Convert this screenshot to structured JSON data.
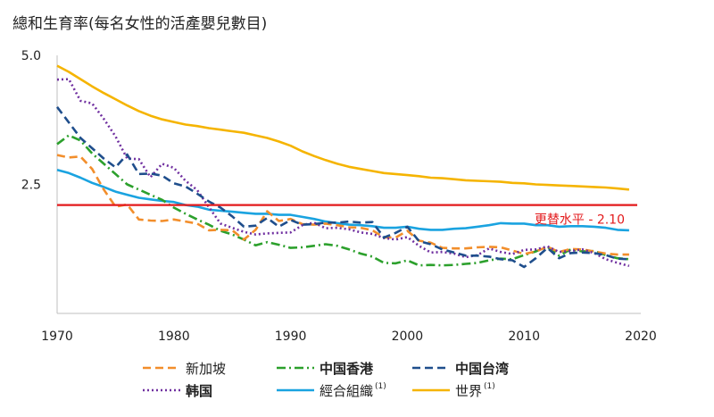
{
  "chart_data": {
    "type": "line",
    "title": "總和生育率(每名女性的活產嬰兒數目)",
    "xlabel": "",
    "ylabel": "",
    "xlim": [
      1970,
      2020
    ],
    "ylim": [
      0,
      5
    ],
    "x_ticks": [
      "1970",
      "1980",
      "1990",
      "2000",
      "2010",
      "2020"
    ],
    "y_ticks": [
      "5.0",
      "2.5"
    ],
    "reference_line": {
      "label": "更替水平 - 2.10",
      "value": 2.1,
      "color": "#e31a1c"
    },
    "series": [
      {
        "name": "新加坡",
        "color": "#f28e2b",
        "style": "dash",
        "bold": false,
        "note": "",
        "x": [
          1970,
          1971,
          1972,
          1973,
          1974,
          1975,
          1976,
          1977,
          1978,
          1979,
          1980,
          1981,
          1982,
          1983,
          1984,
          1985,
          1986,
          1987,
          1988,
          1989,
          1990,
          1991,
          1992,
          1993,
          1994,
          1995,
          1996,
          1997,
          1998,
          1999,
          2000,
          2001,
          2002,
          2003,
          2004,
          2005,
          2006,
          2007,
          2008,
          2009,
          2010,
          2011,
          2012,
          2013,
          2014,
          2015,
          2016,
          2017,
          2018,
          2019
        ],
        "y": [
          3.07,
          3.02,
          3.04,
          2.8,
          2.4,
          2.07,
          2.11,
          1.82,
          1.8,
          1.79,
          1.82,
          1.78,
          1.74,
          1.61,
          1.62,
          1.61,
          1.43,
          1.62,
          1.98,
          1.79,
          1.83,
          1.73,
          1.72,
          1.74,
          1.71,
          1.67,
          1.66,
          1.61,
          1.47,
          1.47,
          1.6,
          1.41,
          1.37,
          1.27,
          1.26,
          1.26,
          1.28,
          1.29,
          1.28,
          1.22,
          1.15,
          1.2,
          1.29,
          1.19,
          1.25,
          1.24,
          1.2,
          1.16,
          1.14,
          1.14
        ]
      },
      {
        "name": "中国香港",
        "color": "#2ca02c",
        "style": "dashdot",
        "bold": true,
        "note": "",
        "x": [
          1970,
          1971,
          1972,
          1973,
          1974,
          1975,
          1976,
          1977,
          1978,
          1979,
          1980,
          1981,
          1982,
          1983,
          1984,
          1985,
          1986,
          1987,
          1988,
          1989,
          1990,
          1991,
          1992,
          1993,
          1994,
          1995,
          1996,
          1997,
          1998,
          1999,
          2000,
          2001,
          2002,
          2003,
          2004,
          2005,
          2006,
          2007,
          2008,
          2009,
          2010,
          2011,
          2012,
          2013,
          2014,
          2015,
          2016,
          2017,
          2018,
          2019
        ],
        "y": [
          3.28,
          3.45,
          3.35,
          3.1,
          2.9,
          2.7,
          2.5,
          2.4,
          2.3,
          2.2,
          2.05,
          1.93,
          1.82,
          1.72,
          1.6,
          1.53,
          1.43,
          1.32,
          1.38,
          1.33,
          1.27,
          1.28,
          1.31,
          1.34,
          1.31,
          1.24,
          1.16,
          1.1,
          0.98,
          0.97,
          1.03,
          0.93,
          0.94,
          0.93,
          0.94,
          0.96,
          0.98,
          1.03,
          1.06,
          1.05,
          1.13,
          1.2,
          1.29,
          1.12,
          1.24,
          1.2,
          1.21,
          1.13,
          1.07,
          1.05
        ]
      },
      {
        "name": "中国台湾",
        "color": "#1f4e8c",
        "style": "dash",
        "bold": true,
        "note": "",
        "x": [
          1970,
          1971,
          1972,
          1973,
          1974,
          1975,
          1976,
          1977,
          1978,
          1979,
          1980,
          1981,
          1982,
          1983,
          1984,
          1985,
          1986,
          1987,
          1988,
          1989,
          1990,
          1991,
          1992,
          1993,
          1994,
          1995,
          1996,
          1997,
          1998,
          1999,
          2000,
          2001,
          2002,
          2003,
          2004,
          2005,
          2006,
          2007,
          2008,
          2009,
          2010,
          2011,
          2012,
          2013,
          2014,
          2015,
          2016,
          2017,
          2018,
          2019
        ],
        "y": [
          4.0,
          3.7,
          3.4,
          3.2,
          3.0,
          2.83,
          3.08,
          2.7,
          2.71,
          2.67,
          2.52,
          2.46,
          2.32,
          2.17,
          2.05,
          1.88,
          1.68,
          1.7,
          1.85,
          1.68,
          1.81,
          1.72,
          1.73,
          1.76,
          1.76,
          1.78,
          1.76,
          1.77,
          1.47,
          1.56,
          1.68,
          1.4,
          1.34,
          1.24,
          1.18,
          1.12,
          1.12,
          1.1,
          1.05,
          1.03,
          0.9,
          1.07,
          1.27,
          1.07,
          1.17,
          1.18,
          1.17,
          1.13,
          1.06,
          1.05
        ]
      },
      {
        "name": "韩国",
        "color": "#7030a0",
        "style": "dot",
        "bold": true,
        "note": "",
        "x": [
          1970,
          1971,
          1972,
          1973,
          1974,
          1975,
          1976,
          1977,
          1978,
          1979,
          1980,
          1981,
          1982,
          1983,
          1984,
          1985,
          1986,
          1987,
          1988,
          1989,
          1990,
          1991,
          1992,
          1993,
          1994,
          1995,
          1996,
          1997,
          1998,
          1999,
          2000,
          2001,
          2002,
          2003,
          2004,
          2005,
          2006,
          2007,
          2008,
          2009,
          2010,
          2011,
          2012,
          2013,
          2014,
          2015,
          2016,
          2017,
          2018,
          2019
        ],
        "y": [
          4.53,
          4.54,
          4.12,
          4.07,
          3.77,
          3.43,
          3.0,
          2.99,
          2.64,
          2.9,
          2.82,
          2.57,
          2.39,
          2.06,
          1.74,
          1.66,
          1.58,
          1.53,
          1.55,
          1.56,
          1.57,
          1.71,
          1.76,
          1.65,
          1.66,
          1.63,
          1.57,
          1.54,
          1.46,
          1.43,
          1.48,
          1.31,
          1.18,
          1.19,
          1.16,
          1.09,
          1.13,
          1.26,
          1.19,
          1.15,
          1.23,
          1.24,
          1.3,
          1.19,
          1.21,
          1.24,
          1.17,
          1.05,
          0.98,
          0.92
        ]
      },
      {
        "name": "經合組織",
        "color": "#1aa3e0",
        "style": "solid",
        "bold": false,
        "note": "(1)",
        "x": [
          1970,
          1971,
          1972,
          1973,
          1974,
          1975,
          1976,
          1977,
          1978,
          1979,
          1980,
          1981,
          1982,
          1983,
          1984,
          1985,
          1986,
          1987,
          1988,
          1989,
          1990,
          1991,
          1992,
          1993,
          1994,
          1995,
          1996,
          1997,
          1998,
          1999,
          2000,
          2001,
          2002,
          2003,
          2004,
          2005,
          2006,
          2007,
          2008,
          2009,
          2010,
          2011,
          2012,
          2013,
          2014,
          2015,
          2016,
          2017,
          2018,
          2019
        ],
        "y": [
          2.78,
          2.72,
          2.63,
          2.53,
          2.45,
          2.36,
          2.3,
          2.24,
          2.21,
          2.18,
          2.16,
          2.1,
          2.07,
          2.01,
          1.99,
          1.97,
          1.95,
          1.93,
          1.93,
          1.91,
          1.91,
          1.87,
          1.83,
          1.78,
          1.75,
          1.72,
          1.71,
          1.69,
          1.66,
          1.66,
          1.68,
          1.64,
          1.62,
          1.62,
          1.64,
          1.65,
          1.68,
          1.71,
          1.75,
          1.74,
          1.74,
          1.71,
          1.71,
          1.68,
          1.69,
          1.69,
          1.68,
          1.66,
          1.62,
          1.61
        ]
      },
      {
        "name": "世界",
        "color": "#f5b400",
        "style": "solid",
        "bold": false,
        "note": "(1)",
        "x": [
          1970,
          1971,
          1972,
          1973,
          1974,
          1975,
          1976,
          1977,
          1978,
          1979,
          1980,
          1981,
          1982,
          1983,
          1984,
          1985,
          1986,
          1987,
          1988,
          1989,
          1990,
          1991,
          1992,
          1993,
          1994,
          1995,
          1996,
          1997,
          1998,
          1999,
          2000,
          2001,
          2002,
          2003,
          2004,
          2005,
          2006,
          2007,
          2008,
          2009,
          2010,
          2011,
          2012,
          2013,
          2014,
          2015,
          2016,
          2017,
          2018,
          2019
        ],
        "y": [
          4.8,
          4.68,
          4.54,
          4.4,
          4.27,
          4.15,
          4.03,
          3.92,
          3.83,
          3.76,
          3.71,
          3.66,
          3.63,
          3.59,
          3.56,
          3.53,
          3.5,
          3.45,
          3.4,
          3.33,
          3.25,
          3.14,
          3.05,
          2.97,
          2.9,
          2.84,
          2.8,
          2.76,
          2.72,
          2.7,
          2.68,
          2.66,
          2.63,
          2.62,
          2.6,
          2.58,
          2.57,
          2.56,
          2.55,
          2.53,
          2.52,
          2.5,
          2.49,
          2.48,
          2.47,
          2.46,
          2.45,
          2.44,
          2.42,
          2.4
        ]
      }
    ]
  }
}
